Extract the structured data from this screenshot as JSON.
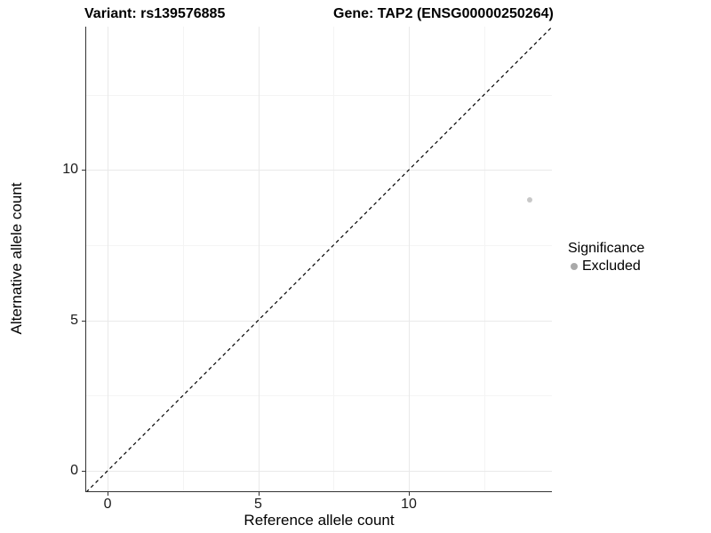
{
  "figure": {
    "titles": {
      "variant": "Variant: rs139576885",
      "gene": "Gene: TAP2 (ENSG00000250264)"
    }
  },
  "axes": {
    "x": {
      "title": "Reference allele count",
      "tick_labels": [
        "0",
        "5",
        "10"
      ]
    },
    "y": {
      "title": "Alternative allele count",
      "tick_labels": [
        "0",
        "5",
        "10"
      ]
    }
  },
  "legend": {
    "title": "Significance",
    "items": [
      {
        "label": "Excluded",
        "color": "#a9a9a9"
      }
    ]
  },
  "chart_data": {
    "type": "scatter",
    "title": "Variant: rs139576885 | Gene: TAP2 (ENSG00000250264)",
    "xlabel": "Reference allele count",
    "ylabel": "Alternative allele count",
    "xlim": [
      -0.71,
      14.75
    ],
    "ylim": [
      -0.68,
      14.76
    ],
    "x_ticks": [
      0,
      5,
      10
    ],
    "y_ticks": [
      0,
      5,
      10
    ],
    "x_minor_ticks": [
      2.5,
      7.5,
      12.5
    ],
    "y_minor_ticks": [
      2.5,
      7.5,
      12.5
    ],
    "grid": "major_and_minor",
    "legend_position": "right",
    "series": [
      {
        "name": "Excluded",
        "color": "#c8c8c8",
        "point_radius_px": 3,
        "points": [
          {
            "x": 14,
            "y": 9
          }
        ]
      }
    ],
    "reference_line": {
      "meaning": "identity line y = x",
      "slope": 1,
      "intercept": 0,
      "style": "dashed",
      "color": "#000000"
    }
  }
}
